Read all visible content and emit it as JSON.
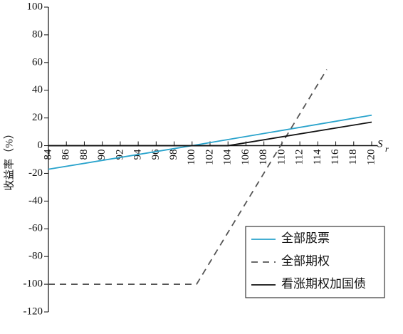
{
  "chart_data": {
    "type": "line",
    "y_label": "收益率（%）",
    "x_label": "S",
    "x_label_sub": "r",
    "xlim": [
      84,
      120
    ],
    "xticks": [
      84,
      86,
      88,
      90,
      92,
      94,
      96,
      98,
      100,
      102,
      104,
      106,
      108,
      110,
      112,
      114,
      116,
      118,
      120
    ],
    "ylim": [
      -120,
      100
    ],
    "yticks": [
      -120,
      -100,
      -80,
      -60,
      -40,
      -20,
      0,
      20,
      40,
      60,
      80,
      100
    ],
    "grid": false,
    "legend": "lower right",
    "series": [
      {
        "name": "全部股票",
        "color": "#29a3cc",
        "dash": false,
        "x": [
          84,
          100,
          120
        ],
        "values": [
          -17,
          0,
          22
        ]
      },
      {
        "name": "全部期权",
        "color": "#555555",
        "dash": true,
        "x": [
          84,
          100.5,
          115
        ],
        "values": [
          -100,
          -100,
          55
        ]
      },
      {
        "name": "看涨期权加国债",
        "color": "#111111",
        "dash": false,
        "x": [
          84,
          104,
          120
        ],
        "values": [
          0,
          0,
          17
        ]
      }
    ]
  }
}
